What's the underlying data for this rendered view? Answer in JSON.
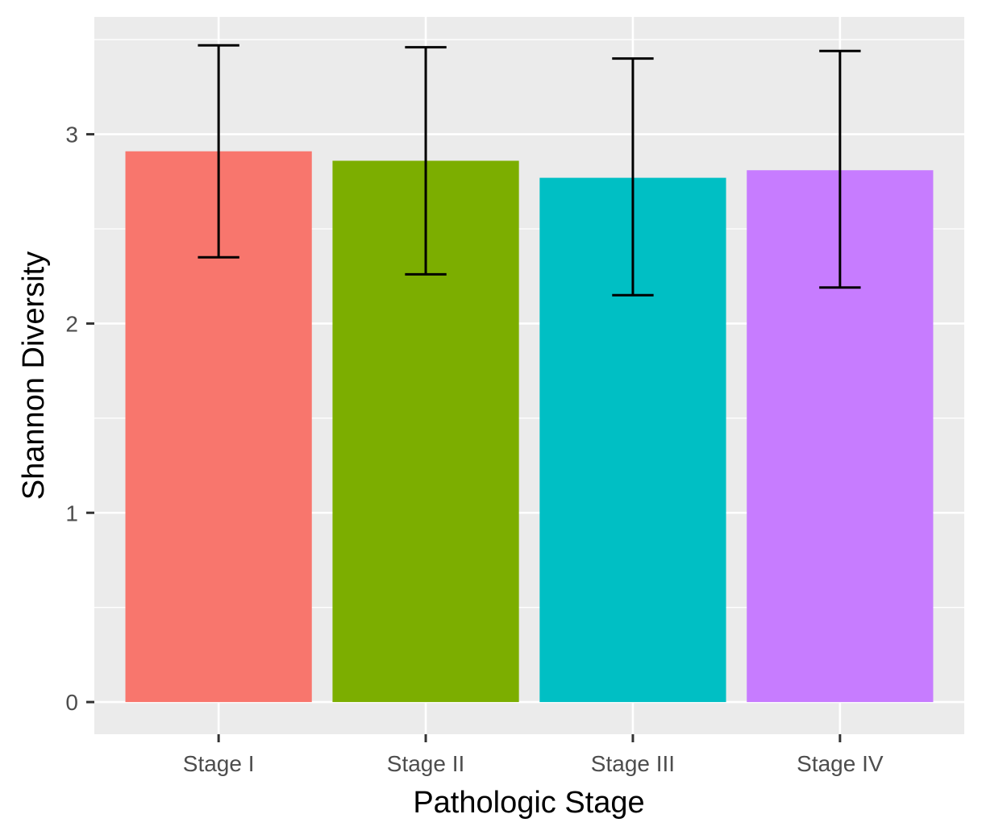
{
  "chart_data": {
    "type": "bar",
    "title": "",
    "xlabel": "Pathologic Stage",
    "ylabel": "Shannon Diversity",
    "categories": [
      "Stage I",
      "Stage II",
      "Stage III",
      "Stage IV"
    ],
    "values": [
      2.91,
      2.86,
      2.77,
      2.81
    ],
    "error_bars": {
      "lower": [
        2.35,
        2.26,
        2.15,
        2.19
      ],
      "upper": [
        3.47,
        3.46,
        3.4,
        3.44
      ]
    },
    "colors": [
      "#F8766D",
      "#7CAE00",
      "#00BFC4",
      "#C77CFF"
    ],
    "ylim": [
      -0.17,
      3.62
    ],
    "yticks": [
      0,
      1,
      2,
      3
    ],
    "ytick_labels": [
      "0",
      "1",
      "2",
      "3"
    ],
    "grid": true,
    "legend": "none",
    "panel_background": "#EBEBEB",
    "grid_color": "#FFFFFF"
  }
}
